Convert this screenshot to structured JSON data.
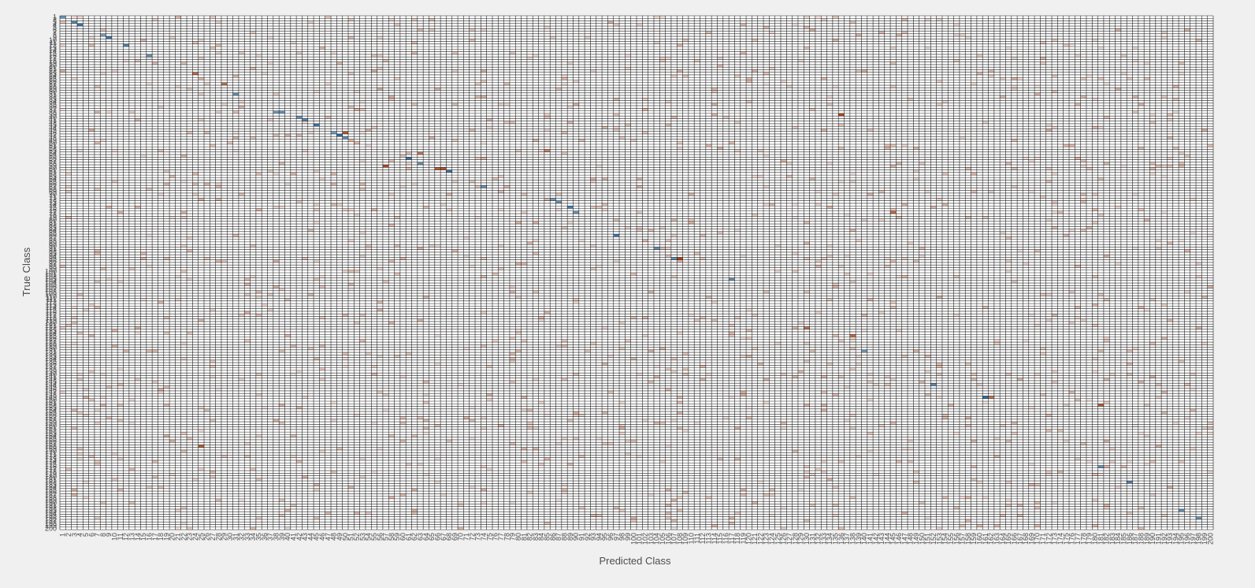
{
  "chart_data": {
    "type": "heatmap",
    "title": "",
    "xlabel": "Predicted Class",
    "ylabel": "True Class",
    "n_classes": 200,
    "x_tick_labels": [
      "1",
      "2",
      "3",
      "4",
      "5",
      "6",
      "7",
      "8",
      "9",
      "10",
      "11",
      "12",
      "13",
      "14",
      "15",
      "16",
      "17",
      "18",
      "19",
      "20",
      "21",
      "22",
      "23",
      "24",
      "25",
      "26",
      "27",
      "28",
      "29",
      "30",
      "31",
      "32",
      "33",
      "34",
      "35",
      "36",
      "37",
      "38",
      "39",
      "40",
      "41",
      "42",
      "43",
      "44",
      "45",
      "46",
      "47",
      "48",
      "49",
      "50",
      "51",
      "52",
      "53",
      "54",
      "55",
      "56",
      "57",
      "58",
      "59",
      "60",
      "61",
      "62",
      "63",
      "64",
      "65",
      "66",
      "67",
      "68",
      "69",
      "70",
      "71",
      "72",
      "73",
      "74",
      "75",
      "76",
      "77",
      "78",
      "79",
      "80",
      "81",
      "82",
      "83",
      "84",
      "85",
      "86",
      "87",
      "88",
      "89",
      "90",
      "91",
      "92",
      "93",
      "94",
      "95",
      "96",
      "97",
      "98",
      "99",
      "100",
      "101",
      "102",
      "103",
      "104",
      "105",
      "106",
      "107",
      "108",
      "109",
      "110",
      "111",
      "112",
      "113",
      "114",
      "115",
      "116",
      "117",
      "118",
      "119",
      "120",
      "121",
      "122",
      "123",
      "124",
      "125",
      "126",
      "127",
      "128",
      "129",
      "130",
      "131",
      "132",
      "133",
      "134",
      "135",
      "136",
      "137",
      "138",
      "139",
      "140",
      "141",
      "142",
      "143",
      "144",
      "145",
      "146",
      "147",
      "148",
      "149",
      "150",
      "151",
      "152",
      "153",
      "154",
      "155",
      "156",
      "157",
      "158",
      "159",
      "160",
      "161",
      "162",
      "163",
      "164",
      "165",
      "166",
      "167",
      "168",
      "169",
      "170",
      "171",
      "172",
      "173",
      "174",
      "175",
      "176",
      "177",
      "178",
      "179",
      "180",
      "181",
      "182",
      "183",
      "184",
      "185",
      "186",
      "187",
      "188",
      "189",
      "190",
      "191",
      "192",
      "193",
      "194",
      "195",
      "196",
      "197",
      "198",
      "199",
      "200"
    ],
    "y_tick_labels": [
      "1",
      "2",
      "3",
      "4",
      "5",
      "6",
      "7",
      "8",
      "9",
      "10",
      "11",
      "12",
      "13",
      "14",
      "15",
      "16",
      "17",
      "18",
      "19",
      "20",
      "21",
      "22",
      "23",
      "24",
      "25",
      "26",
      "27",
      "28",
      "29",
      "30",
      "31",
      "32",
      "33",
      "34",
      "35",
      "36",
      "37",
      "38",
      "39",
      "40",
      "41",
      "42",
      "43",
      "44",
      "45",
      "46",
      "47",
      "48",
      "49",
      "50",
      "51",
      "52",
      "53",
      "54",
      "55",
      "56",
      "57",
      "58",
      "59",
      "60",
      "61",
      "62",
      "63",
      "64",
      "65",
      "66",
      "67",
      "68",
      "69",
      "70",
      "71",
      "72",
      "73",
      "74",
      "75",
      "76",
      "77",
      "78",
      "79",
      "80",
      "81",
      "82",
      "83",
      "84",
      "85",
      "86",
      "87",
      "88",
      "89",
      "90",
      "91",
      "92",
      "93",
      "94",
      "95",
      "96",
      "97",
      "98",
      "99",
      "100",
      "101",
      "102",
      "103",
      "104",
      "105",
      "106",
      "107",
      "108",
      "109",
      "110",
      "111",
      "112",
      "113",
      "114",
      "115",
      "116",
      "117",
      "118",
      "119",
      "120",
      "121",
      "122",
      "123",
      "124",
      "125",
      "126",
      "127",
      "128",
      "129",
      "130",
      "131",
      "132",
      "133",
      "134",
      "135",
      "136",
      "137",
      "138",
      "139",
      "140",
      "141",
      "142",
      "143",
      "144",
      "145",
      "146",
      "147",
      "148",
      "149",
      "150",
      "151",
      "152",
      "153",
      "154",
      "155",
      "156",
      "157",
      "158",
      "159",
      "160",
      "161",
      "162",
      "163",
      "164",
      "165",
      "166",
      "167",
      "168",
      "169",
      "170",
      "171",
      "172",
      "173",
      "174",
      "175",
      "176",
      "177",
      "178",
      "179",
      "180",
      "181",
      "182",
      "183",
      "184",
      "185",
      "186",
      "187",
      "188",
      "189",
      "190",
      "191",
      "192",
      "193",
      "194",
      "195",
      "196",
      "197",
      "198",
      "199",
      "200"
    ],
    "colors": {
      "background": "#f0f0f0",
      "cell_default": "#ffffff",
      "grid": "#222222",
      "correct": "#2a6ea6",
      "incorrect": "#b5451b"
    },
    "highlighted_cells": [
      {
        "row": 1,
        "col": 1,
        "kind": "correct",
        "v": 0.6
      },
      {
        "row": 3,
        "col": 3,
        "kind": "correct",
        "v": 0.7
      },
      {
        "row": 4,
        "col": 4,
        "kind": "correct",
        "v": 0.9
      },
      {
        "row": 8,
        "col": 8,
        "kind": "correct",
        "v": 0.4
      },
      {
        "row": 9,
        "col": 9,
        "kind": "correct",
        "v": 0.9
      },
      {
        "row": 12,
        "col": 12,
        "kind": "correct",
        "v": 0.8
      },
      {
        "row": 16,
        "col": 16,
        "kind": "correct",
        "v": 0.6
      },
      {
        "row": 23,
        "col": 24,
        "kind": "incorrect",
        "v": 0.7
      },
      {
        "row": 27,
        "col": 29,
        "kind": "incorrect",
        "v": 0.7
      },
      {
        "row": 31,
        "col": 31,
        "kind": "correct",
        "v": 0.6
      },
      {
        "row": 38,
        "col": 38,
        "kind": "correct",
        "v": 0.5
      },
      {
        "row": 38,
        "col": 39,
        "kind": "correct",
        "v": 0.6
      },
      {
        "row": 39,
        "col": 136,
        "kind": "incorrect",
        "v": 1.0
      },
      {
        "row": 40,
        "col": 42,
        "kind": "correct",
        "v": 0.6
      },
      {
        "row": 41,
        "col": 43,
        "kind": "correct",
        "v": 0.7
      },
      {
        "row": 43,
        "col": 45,
        "kind": "correct",
        "v": 0.9
      },
      {
        "row": 46,
        "col": 48,
        "kind": "correct",
        "v": 0.5
      },
      {
        "row": 46,
        "col": 50,
        "kind": "incorrect",
        "v": 0.9
      },
      {
        "row": 47,
        "col": 49,
        "kind": "correct",
        "v": 1.0
      },
      {
        "row": 48,
        "col": 50,
        "kind": "correct",
        "v": 0.6
      },
      {
        "row": 53,
        "col": 85,
        "kind": "incorrect",
        "v": 0.5
      },
      {
        "row": 54,
        "col": 63,
        "kind": "incorrect",
        "v": 0.6
      },
      {
        "row": 56,
        "col": 61,
        "kind": "correct",
        "v": 0.9
      },
      {
        "row": 58,
        "col": 63,
        "kind": "correct",
        "v": 0.6
      },
      {
        "row": 59,
        "col": 57,
        "kind": "incorrect",
        "v": 1.0
      },
      {
        "row": 60,
        "col": 66,
        "kind": "incorrect",
        "v": 0.8
      },
      {
        "row": 60,
        "col": 67,
        "kind": "incorrect",
        "v": 0.9
      },
      {
        "row": 61,
        "col": 68,
        "kind": "correct",
        "v": 0.9
      },
      {
        "row": 67,
        "col": 74,
        "kind": "correct",
        "v": 0.6
      },
      {
        "row": 72,
        "col": 86,
        "kind": "correct",
        "v": 0.5
      },
      {
        "row": 73,
        "col": 87,
        "kind": "correct",
        "v": 0.6
      },
      {
        "row": 75,
        "col": 89,
        "kind": "correct",
        "v": 0.8
      },
      {
        "row": 77,
        "col": 90,
        "kind": "correct",
        "v": 0.6
      },
      {
        "row": 77,
        "col": 145,
        "kind": "incorrect",
        "v": 0.7
      },
      {
        "row": 86,
        "col": 97,
        "kind": "correct",
        "v": 0.9
      },
      {
        "row": 91,
        "col": 104,
        "kind": "correct",
        "v": 0.6
      },
      {
        "row": 95,
        "col": 107,
        "kind": "correct",
        "v": 0.6
      },
      {
        "row": 95,
        "col": 108,
        "kind": "incorrect",
        "v": 1.0
      },
      {
        "row": 103,
        "col": 117,
        "kind": "correct",
        "v": 0.6
      },
      {
        "row": 122,
        "col": 130,
        "kind": "incorrect",
        "v": 0.6
      },
      {
        "row": 125,
        "col": 138,
        "kind": "incorrect",
        "v": 0.7
      },
      {
        "row": 131,
        "col": 140,
        "kind": "correct",
        "v": 0.5
      },
      {
        "row": 144,
        "col": 152,
        "kind": "correct",
        "v": 0.7
      },
      {
        "row": 149,
        "col": 161,
        "kind": "correct",
        "v": 1.0
      },
      {
        "row": 149,
        "col": 162,
        "kind": "incorrect",
        "v": 0.6
      },
      {
        "row": 152,
        "col": 181,
        "kind": "incorrect",
        "v": 0.8
      },
      {
        "row": 168,
        "col": 25,
        "kind": "incorrect",
        "v": 0.8
      },
      {
        "row": 176,
        "col": 181,
        "kind": "correct",
        "v": 0.6
      },
      {
        "row": 182,
        "col": 186,
        "kind": "correct",
        "v": 0.8
      },
      {
        "row": 193,
        "col": 195,
        "kind": "correct",
        "v": 0.6
      },
      {
        "row": 196,
        "col": 198,
        "kind": "correct",
        "v": 0.6
      }
    ],
    "grid": true,
    "colorbar": false,
    "legend": "none"
  }
}
